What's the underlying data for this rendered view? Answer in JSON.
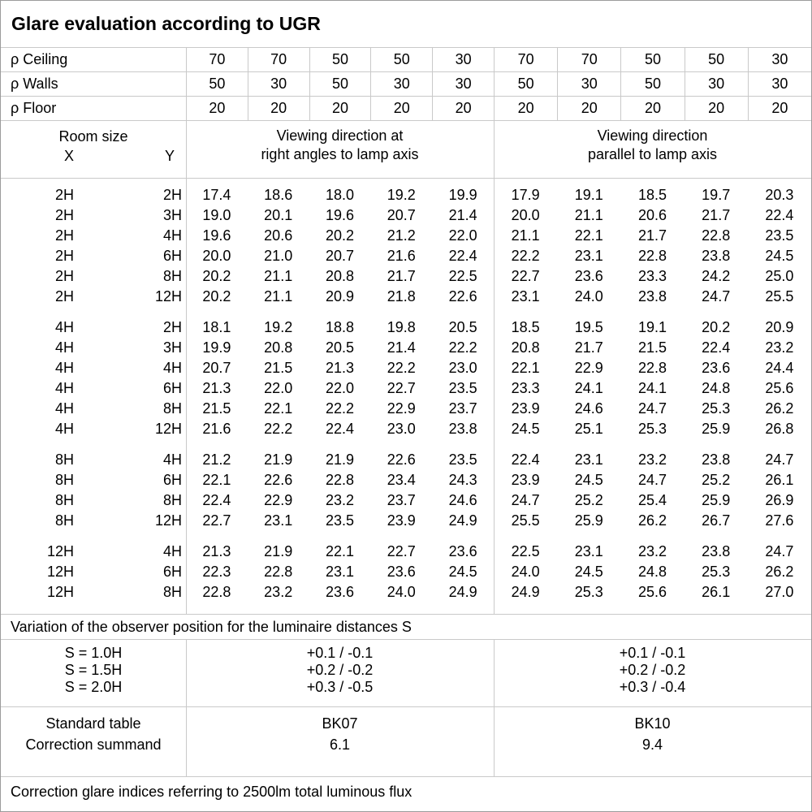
{
  "title": "Glare evaluation according to UGR",
  "reflectance": {
    "rows": [
      {
        "label": "ρ Ceiling",
        "values": [
          "70",
          "70",
          "50",
          "50",
          "30",
          "70",
          "70",
          "50",
          "50",
          "30"
        ]
      },
      {
        "label": "ρ Walls",
        "values": [
          "50",
          "30",
          "50",
          "30",
          "30",
          "50",
          "30",
          "50",
          "30",
          "30"
        ]
      },
      {
        "label": "ρ Floor",
        "values": [
          "20",
          "20",
          "20",
          "20",
          "20",
          "20",
          "20",
          "20",
          "20",
          "20"
        ]
      }
    ]
  },
  "room_header": {
    "room_size": "Room size",
    "x": "X",
    "y": "Y",
    "left_title_line1": "Viewing direction at",
    "left_title_line2": "right angles to lamp axis",
    "right_title_line1": "Viewing direction",
    "right_title_line2": "parallel to lamp axis"
  },
  "table": {
    "groups": [
      {
        "rows": [
          {
            "x": "2H",
            "y": "2H",
            "left": [
              "17.4",
              "18.6",
              "18.0",
              "19.2",
              "19.9"
            ],
            "right": [
              "17.9",
              "19.1",
              "18.5",
              "19.7",
              "20.3"
            ]
          },
          {
            "x": "2H",
            "y": "3H",
            "left": [
              "19.0",
              "20.1",
              "19.6",
              "20.7",
              "21.4"
            ],
            "right": [
              "20.0",
              "21.1",
              "20.6",
              "21.7",
              "22.4"
            ]
          },
          {
            "x": "2H",
            "y": "4H",
            "left": [
              "19.6",
              "20.6",
              "20.2",
              "21.2",
              "22.0"
            ],
            "right": [
              "21.1",
              "22.1",
              "21.7",
              "22.8",
              "23.5"
            ]
          },
          {
            "x": "2H",
            "y": "6H",
            "left": [
              "20.0",
              "21.0",
              "20.7",
              "21.6",
              "22.4"
            ],
            "right": [
              "22.2",
              "23.1",
              "22.8",
              "23.8",
              "24.5"
            ]
          },
          {
            "x": "2H",
            "y": "8H",
            "left": [
              "20.2",
              "21.1",
              "20.8",
              "21.7",
              "22.5"
            ],
            "right": [
              "22.7",
              "23.6",
              "23.3",
              "24.2",
              "25.0"
            ]
          },
          {
            "x": "2H",
            "y": "12H",
            "left": [
              "20.2",
              "21.1",
              "20.9",
              "21.8",
              "22.6"
            ],
            "right": [
              "23.1",
              "24.0",
              "23.8",
              "24.7",
              "25.5"
            ]
          }
        ]
      },
      {
        "rows": [
          {
            "x": "4H",
            "y": "2H",
            "left": [
              "18.1",
              "19.2",
              "18.8",
              "19.8",
              "20.5"
            ],
            "right": [
              "18.5",
              "19.5",
              "19.1",
              "20.2",
              "20.9"
            ]
          },
          {
            "x": "4H",
            "y": "3H",
            "left": [
              "19.9",
              "20.8",
              "20.5",
              "21.4",
              "22.2"
            ],
            "right": [
              "20.8",
              "21.7",
              "21.5",
              "22.4",
              "23.2"
            ]
          },
          {
            "x": "4H",
            "y": "4H",
            "left": [
              "20.7",
              "21.5",
              "21.3",
              "22.2",
              "23.0"
            ],
            "right": [
              "22.1",
              "22.9",
              "22.8",
              "23.6",
              "24.4"
            ]
          },
          {
            "x": "4H",
            "y": "6H",
            "left": [
              "21.3",
              "22.0",
              "22.0",
              "22.7",
              "23.5"
            ],
            "right": [
              "23.3",
              "24.1",
              "24.1",
              "24.8",
              "25.6"
            ]
          },
          {
            "x": "4H",
            "y": "8H",
            "left": [
              "21.5",
              "22.1",
              "22.2",
              "22.9",
              "23.7"
            ],
            "right": [
              "23.9",
              "24.6",
              "24.7",
              "25.3",
              "26.2"
            ]
          },
          {
            "x": "4H",
            "y": "12H",
            "left": [
              "21.6",
              "22.2",
              "22.4",
              "23.0",
              "23.8"
            ],
            "right": [
              "24.5",
              "25.1",
              "25.3",
              "25.9",
              "26.8"
            ]
          }
        ]
      },
      {
        "rows": [
          {
            "x": "8H",
            "y": "4H",
            "left": [
              "21.2",
              "21.9",
              "21.9",
              "22.6",
              "23.5"
            ],
            "right": [
              "22.4",
              "23.1",
              "23.2",
              "23.8",
              "24.7"
            ]
          },
          {
            "x": "8H",
            "y": "6H",
            "left": [
              "22.1",
              "22.6",
              "22.8",
              "23.4",
              "24.3"
            ],
            "right": [
              "23.9",
              "24.5",
              "24.7",
              "25.2",
              "26.1"
            ]
          },
          {
            "x": "8H",
            "y": "8H",
            "left": [
              "22.4",
              "22.9",
              "23.2",
              "23.7",
              "24.6"
            ],
            "right": [
              "24.7",
              "25.2",
              "25.4",
              "25.9",
              "26.9"
            ]
          },
          {
            "x": "8H",
            "y": "12H",
            "left": [
              "22.7",
              "23.1",
              "23.5",
              "23.9",
              "24.9"
            ],
            "right": [
              "25.5",
              "25.9",
              "26.2",
              "26.7",
              "27.6"
            ]
          }
        ]
      },
      {
        "rows": [
          {
            "x": "12H",
            "y": "4H",
            "left": [
              "21.3",
              "21.9",
              "22.1",
              "22.7",
              "23.6"
            ],
            "right": [
              "22.5",
              "23.1",
              "23.2",
              "23.8",
              "24.7"
            ]
          },
          {
            "x": "12H",
            "y": "6H",
            "left": [
              "22.3",
              "22.8",
              "23.1",
              "23.6",
              "24.5"
            ],
            "right": [
              "24.0",
              "24.5",
              "24.8",
              "25.3",
              "26.2"
            ]
          },
          {
            "x": "12H",
            "y": "8H",
            "left": [
              "22.8",
              "23.2",
              "23.6",
              "24.0",
              "24.9"
            ],
            "right": [
              "24.9",
              "25.3",
              "25.6",
              "26.1",
              "27.0"
            ]
          }
        ]
      }
    ]
  },
  "variation_note": "Variation of the observer position for the luminaire distances S",
  "variation_s": {
    "rows": [
      {
        "label": "S = 1.0H",
        "left": "+0.1 / -0.1",
        "right": "+0.1 / -0.1"
      },
      {
        "label": "S = 1.5H",
        "left": "+0.2 / -0.2",
        "right": "+0.2 / -0.2"
      },
      {
        "label": "S = 2.0H",
        "left": "+0.3 / -0.5",
        "right": "+0.3 / -0.4"
      }
    ]
  },
  "standard": {
    "rows": [
      {
        "label": "Standard table",
        "left": "BK07",
        "right": "BK10"
      },
      {
        "label": "Correction summand",
        "left": "6.1",
        "right": "9.4"
      }
    ]
  },
  "footer": "Correction glare indices referring to 2500lm total luminous flux"
}
